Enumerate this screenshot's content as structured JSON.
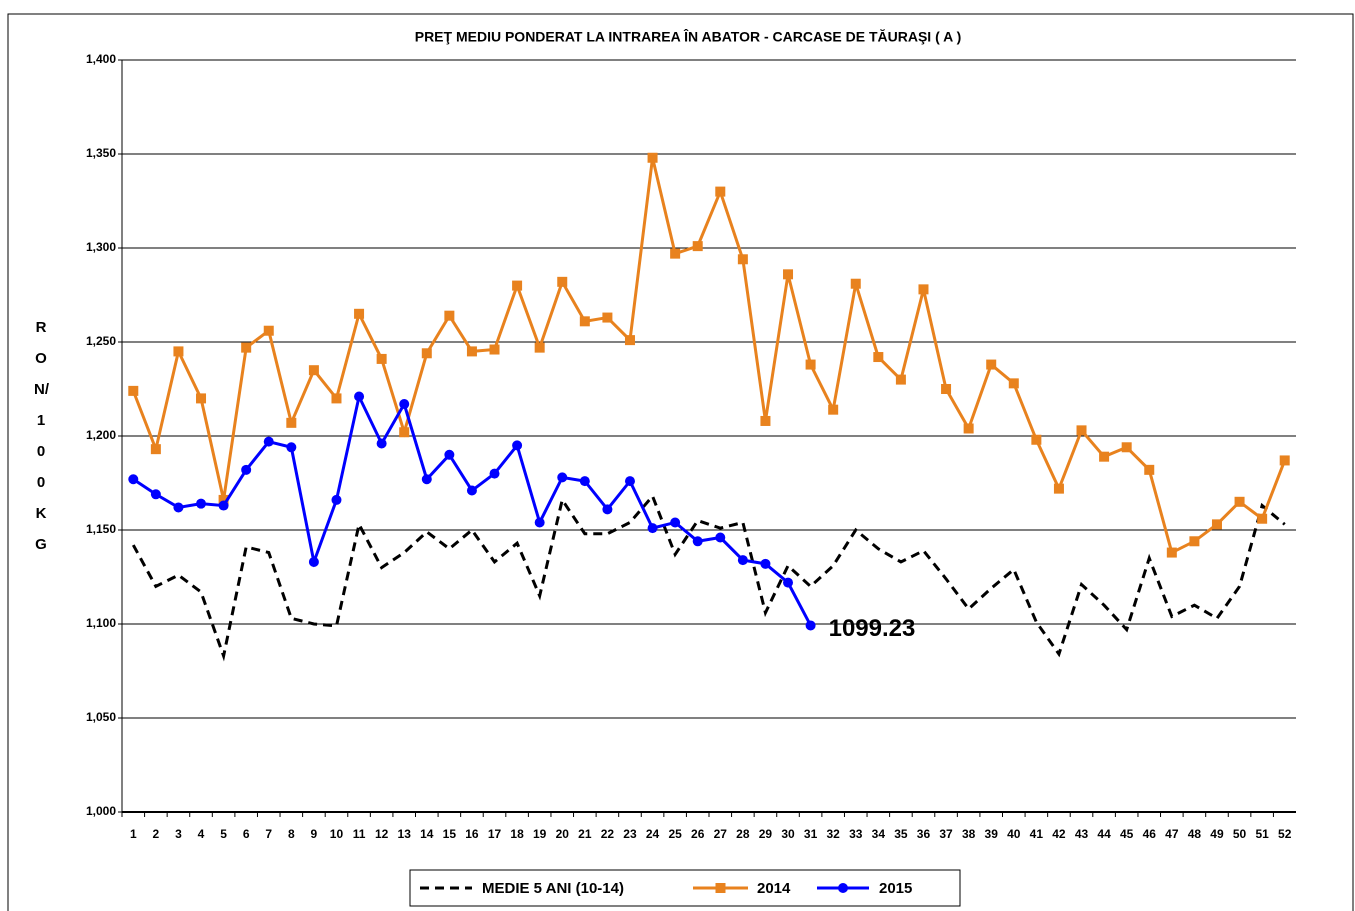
{
  "chart_data": {
    "type": "line",
    "title": "PREŢ MEDIU PONDERAT LA INTRAREA ÎN ABATOR - CARCASE DE TĂURAŞI ( A )",
    "ylabel": "RON/100 KG",
    "categories": [
      "1",
      "2",
      "3",
      "4",
      "5",
      "6",
      "7",
      "8",
      "9",
      "10",
      "11",
      "12",
      "13",
      "14",
      "15",
      "16",
      "17",
      "18",
      "19",
      "20",
      "21",
      "22",
      "23",
      "24",
      "25",
      "26",
      "27",
      "28",
      "29",
      "30",
      "31",
      "32",
      "33",
      "34",
      "35",
      "36",
      "37",
      "38",
      "39",
      "40",
      "41",
      "42",
      "43",
      "44",
      "45",
      "46",
      "47",
      "48",
      "49",
      "50",
      "51",
      "52"
    ],
    "ylim": [
      1000,
      1400
    ],
    "yticks": [
      {
        "value": 1000,
        "label": "1,000"
      },
      {
        "value": 1050,
        "label": "1,050"
      },
      {
        "value": 1100,
        "label": "1,100"
      },
      {
        "value": 1150,
        "label": "1,150"
      },
      {
        "value": 1200,
        "label": "1,200"
      },
      {
        "value": 1250,
        "label": "1,250"
      },
      {
        "value": 1300,
        "label": "1,300"
      },
      {
        "value": 1350,
        "label": "1,350"
      },
      {
        "value": 1400,
        "label": "1,400"
      }
    ],
    "grid": true,
    "legend": "bottom",
    "series": [
      {
        "name": "MEDIE 5 ANI (10-14)",
        "color": "#000000",
        "dash": true,
        "values": [
          1142,
          1120,
          1126,
          1117,
          1083,
          1141,
          1138,
          1103,
          1100,
          1099,
          1153,
          1130,
          1138,
          1149,
          1140,
          1150,
          1133,
          1143,
          1115,
          1166,
          1148,
          1148,
          1154,
          1168,
          1137,
          1155,
          1151,
          1154,
          1106,
          1131,
          1120,
          1131,
          1150,
          1140,
          1133,
          1139,
          1124,
          1108,
          1119,
          1129,
          1101,
          1084,
          1121,
          1110,
          1097,
          1135,
          1104,
          1110,
          1103,
          1120,
          1163,
          1153
        ]
      },
      {
        "name": "2014",
        "color": "#e8821e",
        "marker": "square",
        "values": [
          1224,
          1193,
          1245,
          1220,
          1166,
          1247,
          1256,
          1207,
          1235,
          1220,
          1265,
          1241,
          1202,
          1244,
          1264,
          1245,
          1246,
          1280,
          1247,
          1282,
          1261,
          1263,
          1251,
          1348,
          1297,
          1301,
          1330,
          1294,
          1208,
          1286,
          1238,
          1214,
          1281,
          1242,
          1230,
          1278,
          1225,
          1204,
          1238,
          1228,
          1198,
          1172,
          1203,
          1189,
          1194,
          1182,
          1138,
          1144,
          1153,
          1165,
          1156,
          1187
        ]
      },
      {
        "name": "2015",
        "color": "#0000ff",
        "marker": "circle",
        "values": [
          1177,
          1169,
          1162,
          1164,
          1163,
          1182,
          1197,
          1194,
          1133,
          1166,
          1221,
          1196,
          1217,
          1177,
          1190,
          1171,
          1180,
          1195,
          1154,
          1178,
          1176,
          1161,
          1176,
          1151,
          1154,
          1144,
          1146,
          1134,
          1132,
          1122,
          1099.23,
          null,
          null,
          null,
          null,
          null,
          null,
          null,
          null,
          null,
          null,
          null,
          null,
          null,
          null,
          null,
          null,
          null,
          null,
          null,
          null,
          null
        ]
      }
    ]
  }
}
